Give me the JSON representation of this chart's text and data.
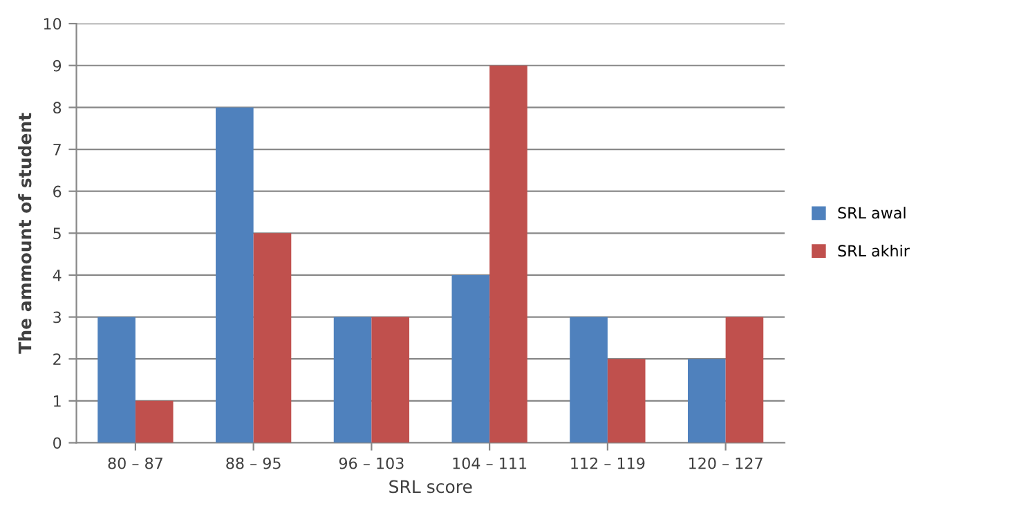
{
  "chart_data": {
    "type": "bar",
    "xlabel": "SRL score",
    "ylabel": "The ammount of student",
    "categories": [
      "80 – 87",
      "88 – 95",
      "96 – 103",
      "104 – 111",
      "112 – 119",
      "120 – 127"
    ],
    "series": [
      {
        "name": "SRL awal",
        "color": "#4f81bd",
        "values": [
          3,
          8,
          3,
          4,
          3,
          2
        ]
      },
      {
        "name": "SRL akhir",
        "color": "#c0504d",
        "values": [
          1,
          5,
          3,
          9,
          2,
          3
        ]
      }
    ],
    "ylim": [
      0,
      10
    ],
    "yticks": [
      0,
      1,
      2,
      3,
      4,
      5,
      6,
      7,
      8,
      9,
      10
    ],
    "grid": "y",
    "legend": "right"
  }
}
